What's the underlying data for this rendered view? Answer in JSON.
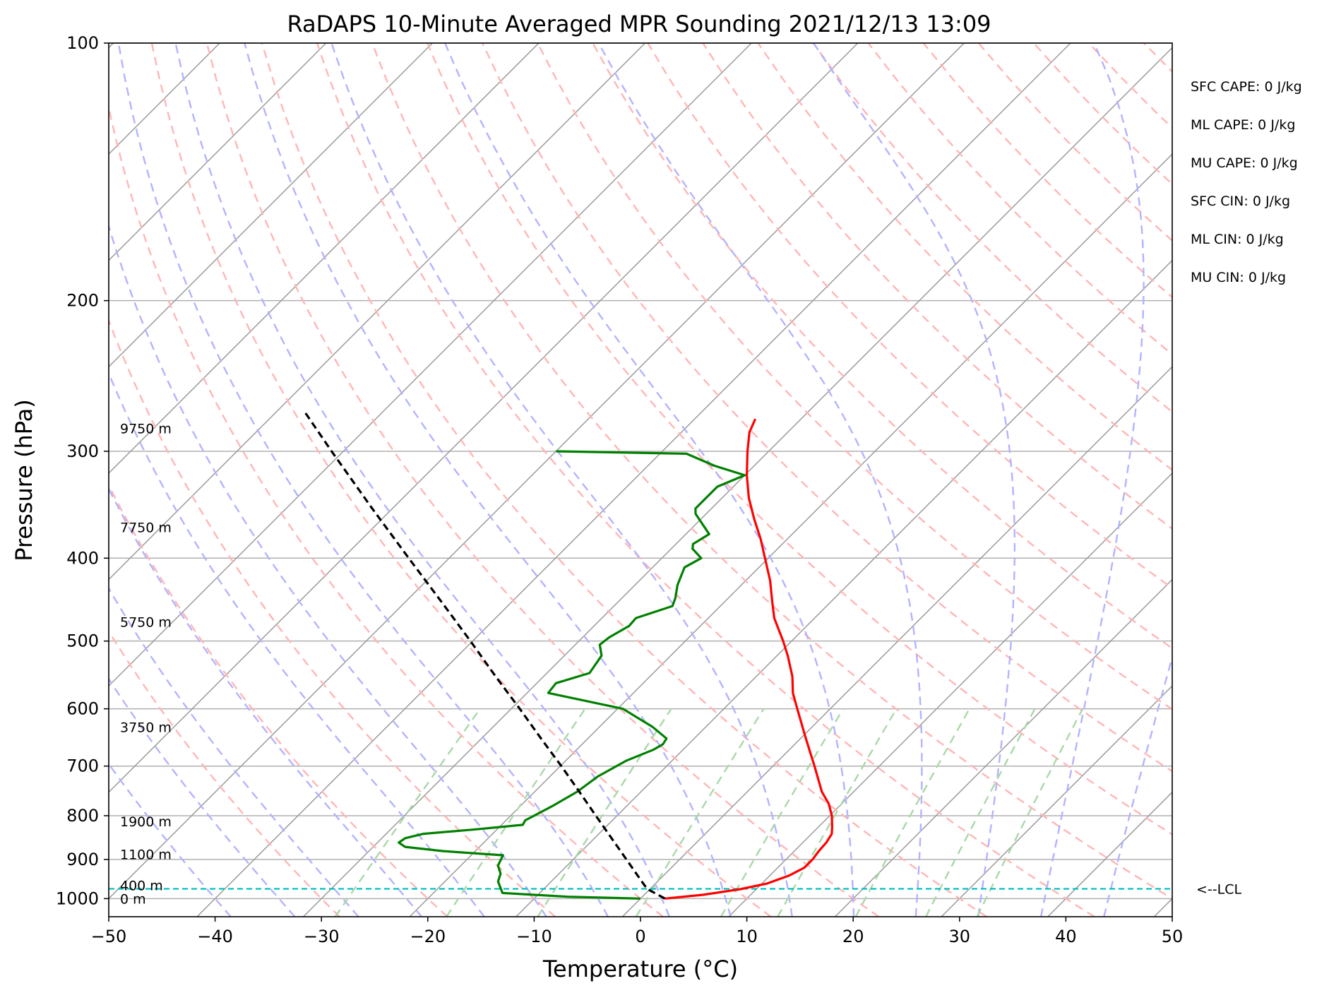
{
  "chart_data": {
    "type": "line",
    "title": "RaDAPS 10-Minute Averaged MPR Sounding 2021/12/13 13:09",
    "xlabel": "Temperature (°C)",
    "ylabel": "Pressure (hPa)",
    "xlim": [
      -50,
      50
    ],
    "ylim": [
      1050,
      100
    ],
    "y_scale": "log",
    "x_ticks": [
      -50,
      -40,
      -30,
      -20,
      -10,
      0,
      10,
      20,
      30,
      40,
      50
    ],
    "x_tick_labels": [
      "−50",
      "−40",
      "−30",
      "−20",
      "−10",
      "0",
      "10",
      "20",
      "30",
      "40",
      "50"
    ],
    "y_ticks": [
      1000,
      900,
      800,
      700,
      600,
      500,
      400,
      300,
      200,
      100
    ],
    "y_tick_labels": [
      "1000",
      "900",
      "800",
      "700",
      "600",
      "500",
      "400",
      "300",
      "200",
      "100"
    ],
    "grid": true,
    "series": [
      {
        "key": "temperature",
        "color": "#ff0000",
        "points": [
          {
            "p": 1000,
            "t": 2.3
          },
          {
            "p": 990,
            "t": 5.5
          },
          {
            "p": 975,
            "t": 8.5
          },
          {
            "p": 960,
            "t": 10.5
          },
          {
            "p": 940,
            "t": 11.8
          },
          {
            "p": 920,
            "t": 12.5
          },
          {
            "p": 900,
            "t": 12.5
          },
          {
            "p": 880,
            "t": 12.3
          },
          {
            "p": 860,
            "t": 12.2
          },
          {
            "p": 840,
            "t": 11.9
          },
          {
            "p": 825,
            "t": 11.3
          },
          {
            "p": 800,
            "t": 10.2
          },
          {
            "p": 775,
            "t": 8.8
          },
          {
            "p": 750,
            "t": 7.0
          },
          {
            "p": 700,
            "t": 3.9
          },
          {
            "p": 650,
            "t": 0.5
          },
          {
            "p": 600,
            "t": -3.1
          },
          {
            "p": 575,
            "t": -5.0
          },
          {
            "p": 550,
            "t": -6.6
          },
          {
            "p": 520,
            "t": -9.0
          },
          {
            "p": 500,
            "t": -10.8
          },
          {
            "p": 470,
            "t": -13.8
          },
          {
            "p": 450,
            "t": -15.5
          },
          {
            "p": 425,
            "t": -17.7
          },
          {
            "p": 400,
            "t": -20.3
          },
          {
            "p": 380,
            "t": -22.5
          },
          {
            "p": 360,
            "t": -25.0
          },
          {
            "p": 340,
            "t": -27.5
          },
          {
            "p": 320,
            "t": -29.8
          },
          {
            "p": 300,
            "t": -32.0
          },
          {
            "p": 285,
            "t": -33.6
          },
          {
            "p": 275,
            "t": -34.3
          }
        ]
      },
      {
        "key": "dewpoint",
        "color": "#008000",
        "points": [
          {
            "p": 1000,
            "t": 0.0
          },
          {
            "p": 995,
            "t": -7.0
          },
          {
            "p": 985,
            "t": -13.5
          },
          {
            "p": 975,
            "t": -14.0
          },
          {
            "p": 955,
            "t": -15.0
          },
          {
            "p": 935,
            "t": -15.5
          },
          {
            "p": 915,
            "t": -16.5
          },
          {
            "p": 890,
            "t": -17.0
          },
          {
            "p": 880,
            "t": -23.0
          },
          {
            "p": 870,
            "t": -27.0
          },
          {
            "p": 860,
            "t": -28.0
          },
          {
            "p": 850,
            "t": -27.8
          },
          {
            "p": 840,
            "t": -26.5
          },
          {
            "p": 830,
            "t": -22.0
          },
          {
            "p": 820,
            "t": -18.0
          },
          {
            "p": 810,
            "t": -18.2
          },
          {
            "p": 780,
            "t": -17.0
          },
          {
            "p": 750,
            "t": -16.0
          },
          {
            "p": 720,
            "t": -15.5
          },
          {
            "p": 690,
            "t": -14.3
          },
          {
            "p": 670,
            "t": -12.8
          },
          {
            "p": 660,
            "t": -12.4
          },
          {
            "p": 650,
            "t": -12.6
          },
          {
            "p": 630,
            "t": -15.0
          },
          {
            "p": 600,
            "t": -19.5
          },
          {
            "p": 575,
            "t": -28.0
          },
          {
            "p": 560,
            "t": -28.2
          },
          {
            "p": 545,
            "t": -26.0
          },
          {
            "p": 520,
            "t": -26.5
          },
          {
            "p": 505,
            "t": -27.7
          },
          {
            "p": 495,
            "t": -27.5
          },
          {
            "p": 480,
            "t": -26.7
          },
          {
            "p": 470,
            "t": -26.8
          },
          {
            "p": 455,
            "t": -24.5
          },
          {
            "p": 445,
            "t": -25.0
          },
          {
            "p": 430,
            "t": -26.0
          },
          {
            "p": 410,
            "t": -27.0
          },
          {
            "p": 400,
            "t": -26.3
          },
          {
            "p": 390,
            "t": -28.0
          },
          {
            "p": 385,
            "t": -28.4
          },
          {
            "p": 375,
            "t": -27.8
          },
          {
            "p": 355,
            "t": -31.0
          },
          {
            "p": 350,
            "t": -31.5
          },
          {
            "p": 340,
            "t": -31.5
          },
          {
            "p": 330,
            "t": -31.5
          },
          {
            "p": 320,
            "t": -30.0
          },
          {
            "p": 312,
            "t": -33.7
          },
          {
            "p": 302,
            "t": -37.5
          },
          {
            "p": 300,
            "t": -50.0
          }
        ]
      },
      {
        "key": "parcel",
        "color": "#000000",
        "points": [
          {
            "p": 1000,
            "t": 2.3
          },
          {
            "p": 974,
            "t": -0.3
          },
          {
            "p": 950,
            "t": -1.8
          },
          {
            "p": 900,
            "t": -5.0
          },
          {
            "p": 850,
            "t": -8.4
          },
          {
            "p": 800,
            "t": -12.0
          },
          {
            "p": 750,
            "t": -15.8
          },
          {
            "p": 700,
            "t": -19.9
          },
          {
            "p": 650,
            "t": -24.4
          },
          {
            "p": 600,
            "t": -29.2
          },
          {
            "p": 550,
            "t": -34.5
          },
          {
            "p": 500,
            "t": -40.2
          },
          {
            "p": 450,
            "t": -46.6
          },
          {
            "p": 400,
            "t": -53.8
          },
          {
            "p": 350,
            "t": -61.9
          },
          {
            "p": 300,
            "t": -71.1
          },
          {
            "p": 270,
            "t": -77.3
          }
        ]
      }
    ],
    "lcl": {
      "p": 974,
      "label": "<--LCL"
    },
    "height_labels": [
      {
        "p": 1000,
        "label": "0 m"
      },
      {
        "p": 965,
        "label": "400 m"
      },
      {
        "p": 887,
        "label": "1100 m"
      },
      {
        "p": 812,
        "label": "1900 m"
      },
      {
        "p": 630,
        "label": "3750 m"
      },
      {
        "p": 475,
        "label": "5750 m"
      },
      {
        "p": 368,
        "label": "7750 m"
      },
      {
        "p": 282,
        "label": "9750 m"
      }
    ],
    "indices": [
      "SFC CAPE: 0 J/kg",
      "ML CAPE: 0 J/kg",
      "MU CAPE: 0 J/kg",
      "SFC CIN: 0 J/kg",
      "ML CIN: 0 J/kg",
      "MU CIN: 0 J/kg"
    ],
    "reference_lines": {
      "isotherms_color": "#9b9b9b",
      "dry_adiabats_color": "#ffb6b6",
      "moist_adiabats_color": "#b3b3ff",
      "mixing_ratio_color": "#a9d8a9",
      "lcl_color": "#00c0c0"
    }
  }
}
